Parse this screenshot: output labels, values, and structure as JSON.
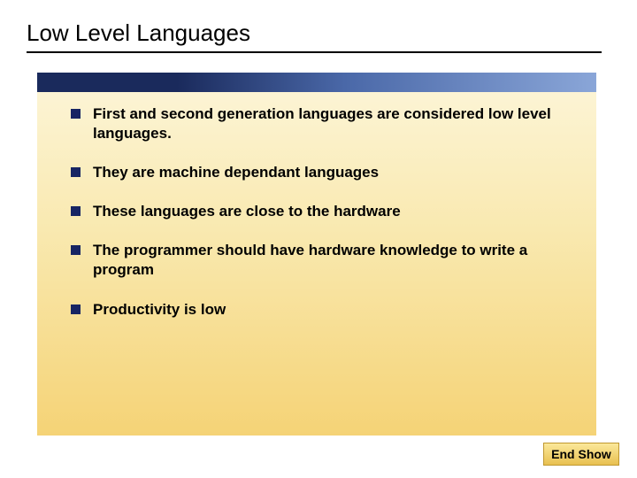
{
  "slide": {
    "title": "Low Level Languages",
    "title_fontsize": 26,
    "title_color": "#000000",
    "underline_color": "#000000",
    "gradient_bar": {
      "color_start": "#1a2a5c",
      "color_mid": "#4a68a8",
      "color_end": "#8aa6d8"
    },
    "content_bg": {
      "color_top": "#fcf4d4",
      "color_mid": "#f9e9b0",
      "color_bottom": "#f5d376"
    },
    "bullet_marker_color": "#172563",
    "bullet_text_color": "#000000",
    "bullet_fontsize": 17,
    "bullet_fontweight": "bold",
    "bullets": [
      "First and second generation languages are considered low level languages.",
      "They are machine dependant languages",
      "These languages are close to the hardware",
      "The programmer should have hardware knowledge to write a program",
      "Productivity is low"
    ],
    "end_button": {
      "label": "End Show",
      "bg_top": "#fbe89a",
      "bg_bottom": "#e8c050",
      "border_color": "#c09830",
      "text_color": "#000000"
    }
  }
}
